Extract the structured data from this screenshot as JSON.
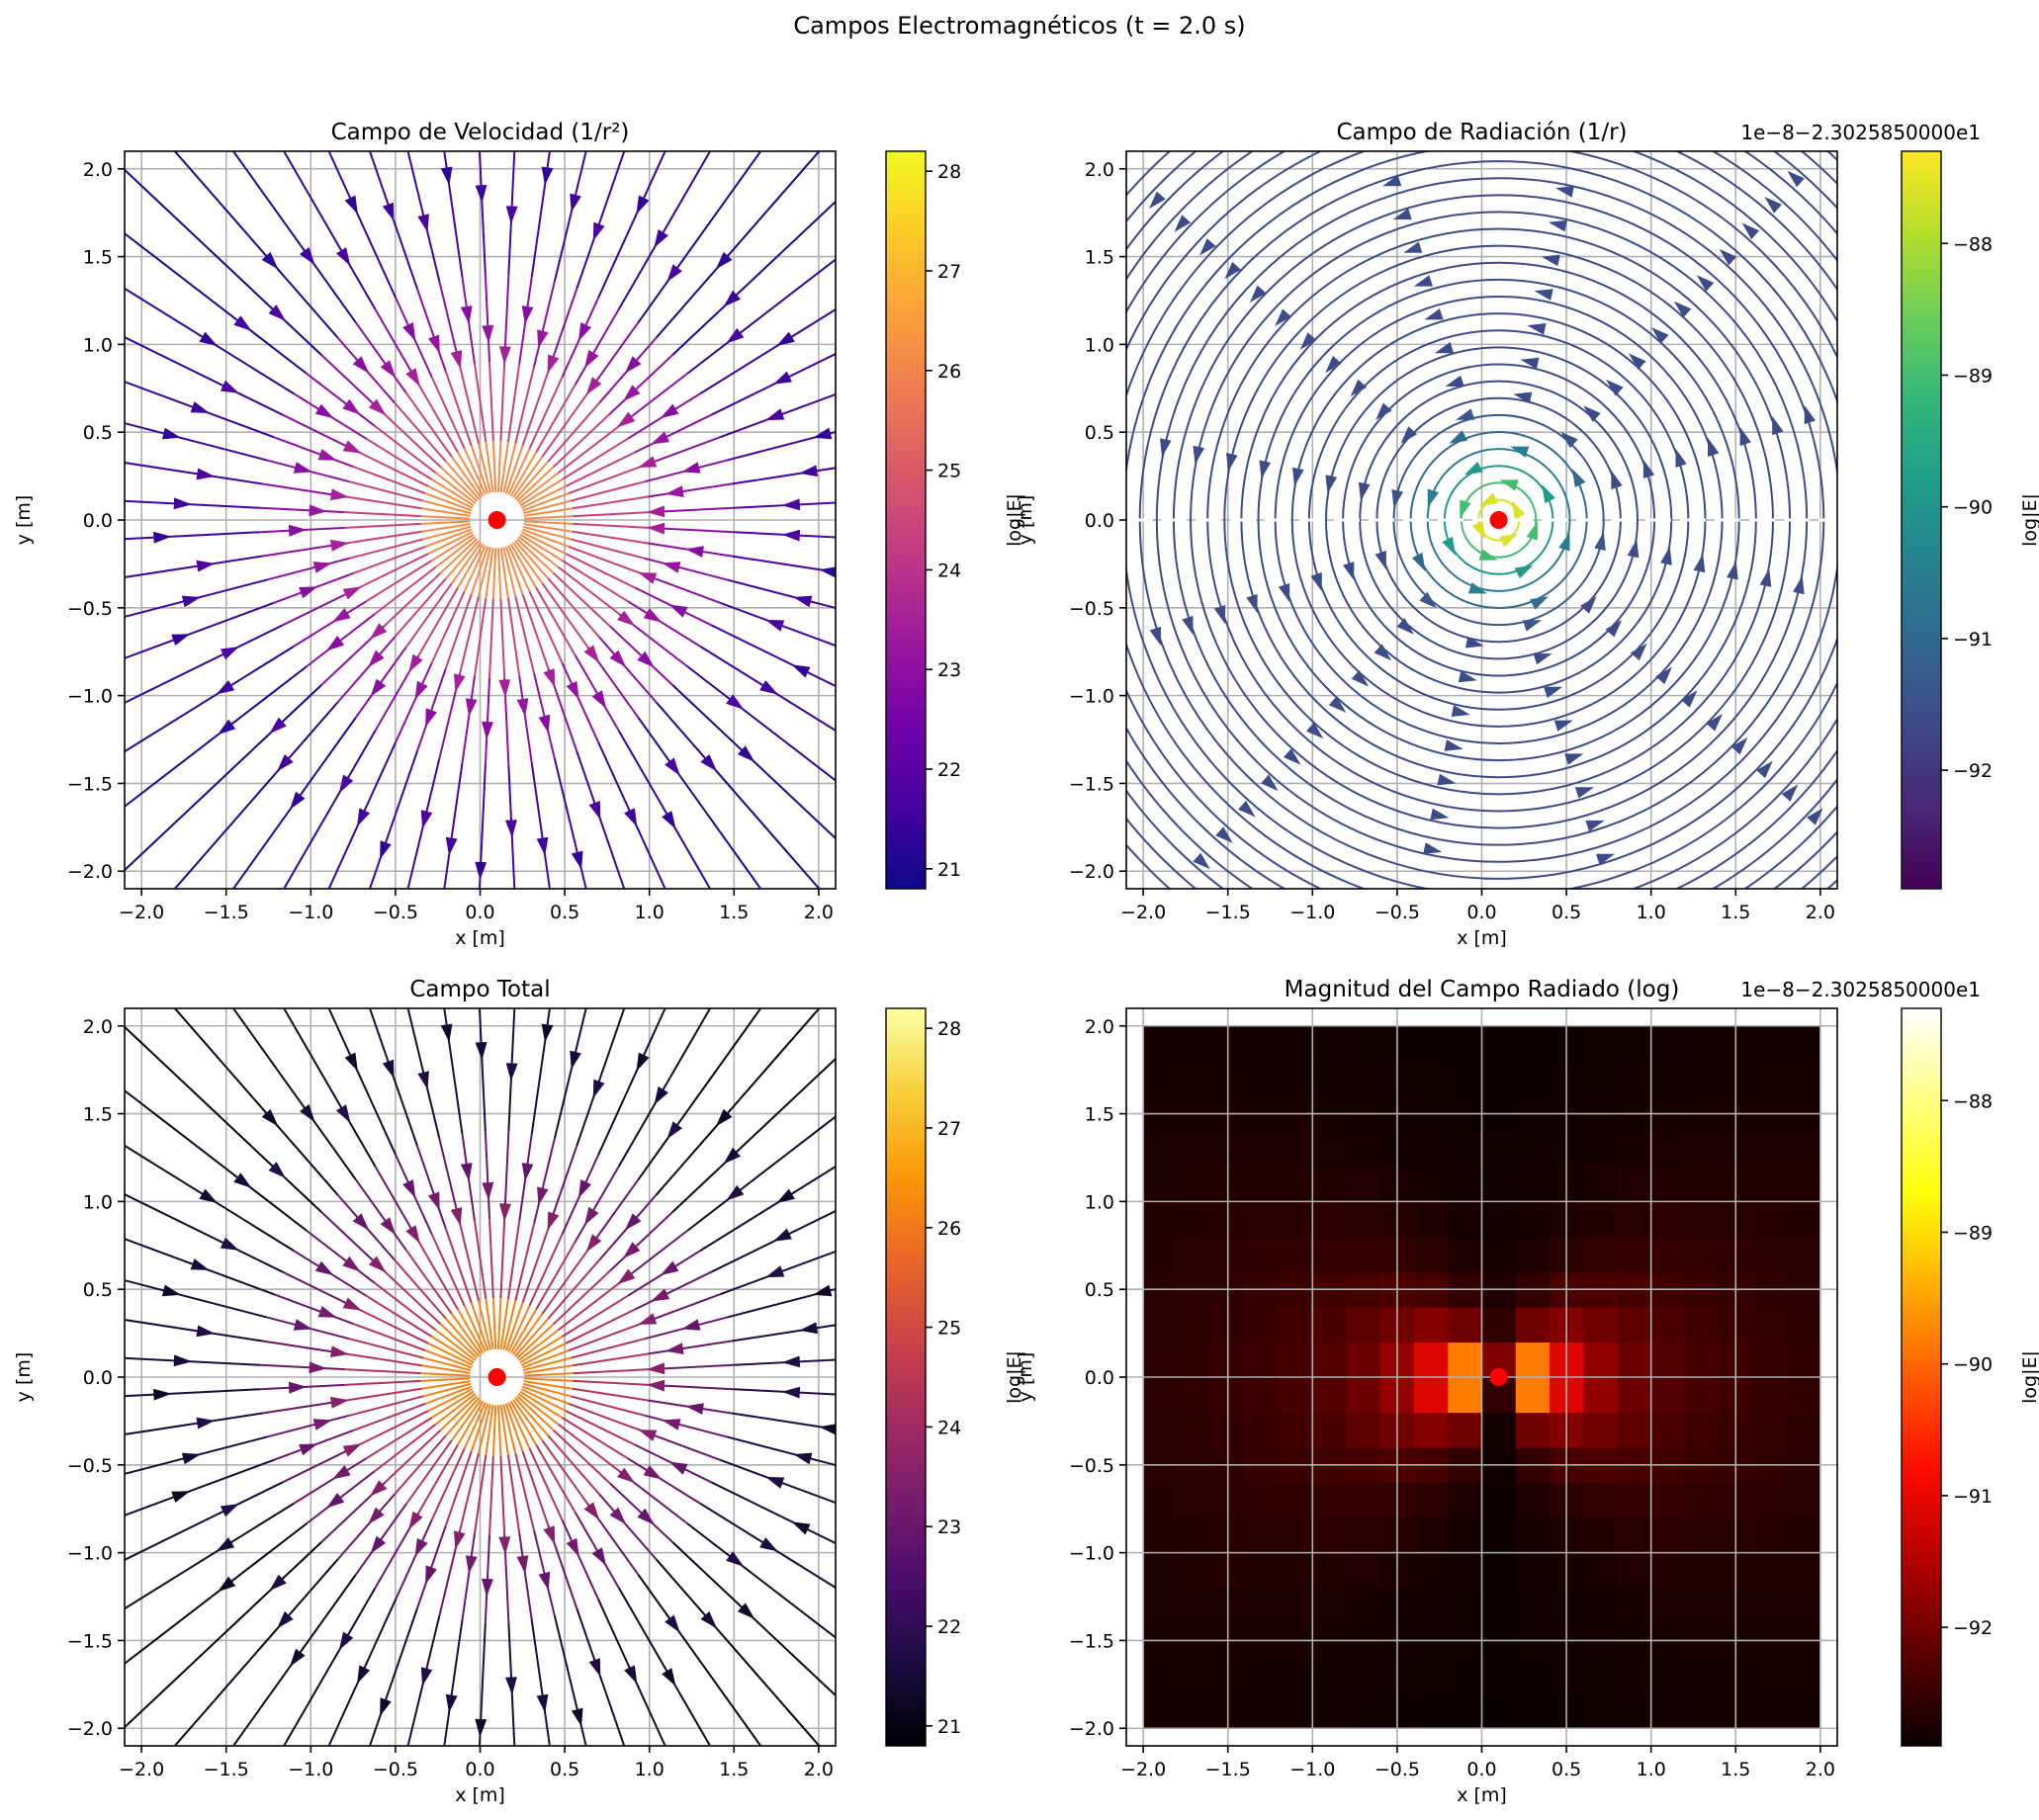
{
  "suptitle": "Campos Electromagnéticos (t = 2.0 s)",
  "source_point": {
    "x": 0.1,
    "y": 0.0,
    "color": "#ff0000"
  },
  "chart_data": [
    {
      "id": "velocity",
      "type": "streamplot",
      "title": "Campo de Velocidad (1/r²)",
      "xlabel": "x [m]",
      "ylabel": "y [m]",
      "xlim": [
        -2.1,
        2.1
      ],
      "ylim": [
        -2.1,
        2.1
      ],
      "xticks": [
        "−2.0",
        "−1.5",
        "−1.0",
        "−0.5",
        "0.0",
        "0.5",
        "1.0",
        "1.5",
        "2.0"
      ],
      "yticks": [
        "−2.0",
        "−1.5",
        "−1.0",
        "−0.5",
        "0.0",
        "0.5",
        "1.0",
        "1.5",
        "2.0"
      ],
      "grid": true,
      "field": "radial",
      "colormap": "plasma",
      "colorbar": {
        "label": "log|E|",
        "range": [
          20.8,
          28.2
        ],
        "ticks": [
          "21",
          "22",
          "23",
          "24",
          "25",
          "26",
          "27",
          "28"
        ],
        "offset": ""
      }
    },
    {
      "id": "radiation",
      "type": "streamplot",
      "title": "Campo de Radiación (1/r)",
      "xlabel": "x [m]",
      "ylabel": "y [m]",
      "xlim": [
        -2.1,
        2.1
      ],
      "ylim": [
        -2.1,
        2.1
      ],
      "xticks": [
        "−2.0",
        "−1.5",
        "−1.0",
        "−0.5",
        "0.0",
        "0.5",
        "1.0",
        "1.5",
        "2.0"
      ],
      "yticks": [
        "−2.0",
        "−1.5",
        "−1.0",
        "−0.5",
        "0.0",
        "0.5",
        "1.0",
        "1.5",
        "2.0"
      ],
      "grid": true,
      "field": "circular",
      "colormap": "viridis",
      "colorbar": {
        "label": "log|E|",
        "range": [
          -92.9,
          -87.3
        ],
        "ticks": [
          "−92",
          "−91",
          "−90",
          "−89",
          "−88"
        ],
        "offset": "1e−8−2.3025850000e1"
      }
    },
    {
      "id": "total",
      "type": "streamplot",
      "title": "Campo Total",
      "xlabel": "x [m]",
      "ylabel": "y [m]",
      "xlim": [
        -2.1,
        2.1
      ],
      "ylim": [
        -2.1,
        2.1
      ],
      "xticks": [
        "−2.0",
        "−1.5",
        "−1.0",
        "−0.5",
        "0.0",
        "0.5",
        "1.0",
        "1.5",
        "2.0"
      ],
      "yticks": [
        "−2.0",
        "−1.5",
        "−1.0",
        "−0.5",
        "0.0",
        "0.5",
        "1.0",
        "1.5",
        "2.0"
      ],
      "grid": true,
      "field": "radial",
      "colormap": "inferno",
      "colorbar": {
        "label": "log|E|",
        "range": [
          20.8,
          28.2
        ],
        "ticks": [
          "21",
          "22",
          "23",
          "24",
          "25",
          "26",
          "27",
          "28"
        ],
        "offset": ""
      }
    },
    {
      "id": "magnitude",
      "type": "heatmap",
      "title": "Magnitud del Campo Radiado (log)",
      "xlabel": "x [m]",
      "ylabel": "y [m]",
      "xlim": [
        -2.1,
        2.1
      ],
      "ylim": [
        -2.1,
        2.1
      ],
      "data_extent": [
        -2.0,
        2.0,
        -2.0,
        2.0
      ],
      "grid_cells": 20,
      "xticks": [
        "−2.0",
        "−1.5",
        "−1.0",
        "−0.5",
        "0.0",
        "0.5",
        "1.0",
        "1.5",
        "2.0"
      ],
      "yticks": [
        "−2.0",
        "−1.5",
        "−1.0",
        "−0.5",
        "0.0",
        "0.5",
        "1.0",
        "1.5",
        "2.0"
      ],
      "grid": true,
      "colormap": "hot",
      "colorbar": {
        "label": "log|E|",
        "range": [
          -92.9,
          -87.3
        ],
        "ticks": [
          "−92",
          "−91",
          "−90",
          "−89",
          "−88"
        ],
        "offset": "1e−8−2.3025850000e1"
      }
    }
  ]
}
